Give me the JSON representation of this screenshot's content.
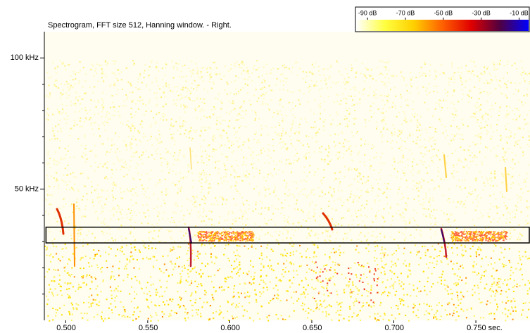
{
  "chart_data": {
    "type": "spectrogram",
    "title": "Spectrogram, FFT size 512, Hanning window. - Right.",
    "xlim": [
      0.487,
      0.783
    ],
    "xticks": [
      {
        "value": 0.5,
        "label": "0.500"
      },
      {
        "value": 0.55,
        "label": "0.550"
      },
      {
        "value": 0.6,
        "label": "0.600"
      },
      {
        "value": 0.65,
        "label": "0.650"
      },
      {
        "value": 0.7,
        "label": "0.700"
      },
      {
        "value": 0.75,
        "label": "0.750 sec."
      }
    ],
    "ylim": [
      0,
      110
    ],
    "yticks": [
      {
        "value": 50,
        "label": "50 kHz"
      },
      {
        "value": 100,
        "label": "100 kHz"
      }
    ],
    "yminorticks": [
      10,
      20,
      30,
      40,
      60,
      70,
      80,
      90
    ],
    "colorbar": {
      "lim": [
        -96,
        -5
      ],
      "ticks": [
        {
          "value": -90,
          "label": "-90 dB"
        },
        {
          "value": -70,
          "label": "-70 dB"
        },
        {
          "value": -50,
          "label": "-50 dB"
        },
        {
          "value": -30,
          "label": "-30 dB"
        },
        {
          "value": -10,
          "label": "-10 dB"
        }
      ],
      "colors": [
        "#ffffff",
        "#ffff40",
        "#ffd000",
        "#ff6000",
        "#e00000",
        "#500040",
        "#0000ff"
      ]
    },
    "selection": {
      "x": [
        0.488,
        0.783
      ],
      "y": [
        29.5,
        35.5
      ]
    }
  }
}
